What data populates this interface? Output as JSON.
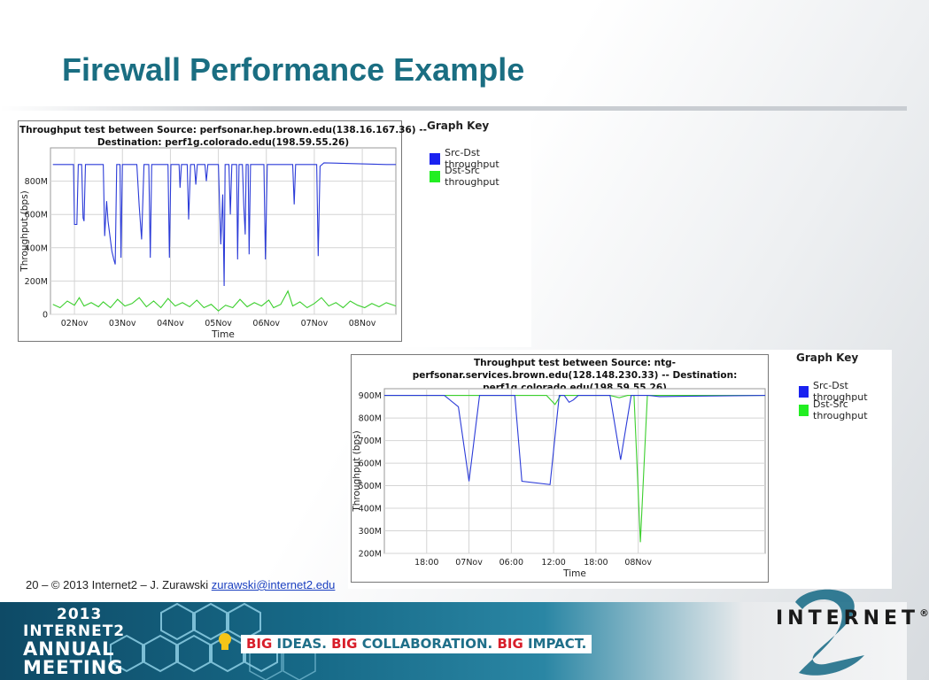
{
  "title": "Firewall Performance Example",
  "chart_data": [
    {
      "type": "line",
      "title_lines": [
        "Throughput test between Source: perfsonar.hep.brown.edu(138.16.167.36) --",
        "Destination: perf1g.colorado.edu(198.59.55.26)"
      ],
      "xlabel": "Time",
      "ylabel": "Throughput (bps)",
      "ylim": [
        0,
        1000
      ],
      "yticks": [
        {
          "v": 0,
          "label": "0"
        },
        {
          "v": 200,
          "label": "200M"
        },
        {
          "v": 400,
          "label": "400M"
        },
        {
          "v": 600,
          "label": "600M"
        },
        {
          "v": 800,
          "label": "800M"
        }
      ],
      "xlim": [
        0.5,
        7.7
      ],
      "xticks": [
        {
          "v": 1,
          "label": "02Nov"
        },
        {
          "v": 2,
          "label": "03Nov"
        },
        {
          "v": 3,
          "label": "04Nov"
        },
        {
          "v": 4,
          "label": "05Nov"
        },
        {
          "v": 5,
          "label": "06Nov"
        },
        {
          "v": 6,
          "label": "07Nov"
        },
        {
          "v": 7,
          "label": "08Nov"
        }
      ],
      "grid": true,
      "legend": {
        "title": "Graph Key",
        "position": "right"
      },
      "series": [
        {
          "name": "Src-Dst throughput",
          "color": "#2b3bd8",
          "points": [
            [
              0.55,
              900
            ],
            [
              0.95,
              900
            ],
            [
              0.98,
              900
            ],
            [
              1.0,
              540
            ],
            [
              1.05,
              540
            ],
            [
              1.08,
              900
            ],
            [
              1.15,
              900
            ],
            [
              1.18,
              580
            ],
            [
              1.2,
              560
            ],
            [
              1.23,
              900
            ],
            [
              1.6,
              900
            ],
            [
              1.63,
              470
            ],
            [
              1.67,
              680
            ],
            [
              1.7,
              560
            ],
            [
              1.78,
              380
            ],
            [
              1.82,
              330
            ],
            [
              1.85,
              300
            ],
            [
              1.88,
              900
            ],
            [
              1.95,
              900
            ],
            [
              1.97,
              340
            ],
            [
              2.0,
              900
            ],
            [
              2.3,
              900
            ],
            [
              2.35,
              650
            ],
            [
              2.4,
              450
            ],
            [
              2.45,
              900
            ],
            [
              2.55,
              900
            ],
            [
              2.58,
              340
            ],
            [
              2.61,
              900
            ],
            [
              2.95,
              900
            ],
            [
              2.98,
              340
            ],
            [
              3.01,
              900
            ],
            [
              3.18,
              900
            ],
            [
              3.2,
              760
            ],
            [
              3.23,
              900
            ],
            [
              3.35,
              900
            ],
            [
              3.38,
              570
            ],
            [
              3.42,
              900
            ],
            [
              3.5,
              900
            ],
            [
              3.53,
              780
            ],
            [
              3.56,
              900
            ],
            [
              3.68,
              900
            ],
            [
              3.72,
              900
            ],
            [
              3.75,
              800
            ],
            [
              3.78,
              900
            ],
            [
              4.0,
              900
            ],
            [
              4.05,
              420
            ],
            [
              4.09,
              720
            ],
            [
              4.12,
              170
            ],
            [
              4.14,
              900
            ],
            [
              4.22,
              900
            ],
            [
              4.25,
              600
            ],
            [
              4.28,
              900
            ],
            [
              4.38,
              900
            ],
            [
              4.4,
              330
            ],
            [
              4.43,
              900
            ],
            [
              4.5,
              900
            ],
            [
              4.53,
              650
            ],
            [
              4.56,
              480
            ],
            [
              4.58,
              900
            ],
            [
              4.62,
              900
            ],
            [
              4.64,
              360
            ],
            [
              4.67,
              900
            ],
            [
              4.95,
              900
            ],
            [
              4.98,
              330
            ],
            [
              5.02,
              900
            ],
            [
              5.55,
              900
            ],
            [
              5.58,
              660
            ],
            [
              5.61,
              900
            ],
            [
              6.05,
              900
            ],
            [
              6.08,
              350
            ],
            [
              6.12,
              890
            ],
            [
              6.2,
              910
            ],
            [
              7.5,
              900
            ],
            [
              7.7,
              900
            ]
          ]
        },
        {
          "name": "Dst-Src throughput",
          "color": "#3ccf2e",
          "points": [
            [
              0.55,
              60
            ],
            [
              0.7,
              40
            ],
            [
              0.85,
              80
            ],
            [
              1.0,
              55
            ],
            [
              1.1,
              100
            ],
            [
              1.2,
              50
            ],
            [
              1.35,
              70
            ],
            [
              1.5,
              45
            ],
            [
              1.6,
              75
            ],
            [
              1.75,
              40
            ],
            [
              1.9,
              90
            ],
            [
              2.05,
              50
            ],
            [
              2.2,
              65
            ],
            [
              2.35,
              100
            ],
            [
              2.5,
              45
            ],
            [
              2.65,
              80
            ],
            [
              2.8,
              40
            ],
            [
              2.95,
              95
            ],
            [
              3.1,
              50
            ],
            [
              3.25,
              70
            ],
            [
              3.4,
              45
            ],
            [
              3.55,
              85
            ],
            [
              3.7,
              40
            ],
            [
              3.85,
              60
            ],
            [
              4.0,
              20
            ],
            [
              4.15,
              55
            ],
            [
              4.3,
              40
            ],
            [
              4.45,
              90
            ],
            [
              4.6,
              45
            ],
            [
              4.75,
              70
            ],
            [
              4.9,
              50
            ],
            [
              5.05,
              85
            ],
            [
              5.15,
              40
            ],
            [
              5.3,
              60
            ],
            [
              5.45,
              140
            ],
            [
              5.55,
              50
            ],
            [
              5.7,
              75
            ],
            [
              5.85,
              40
            ],
            [
              6.0,
              65
            ],
            [
              6.15,
              100
            ],
            [
              6.3,
              50
            ],
            [
              6.45,
              70
            ],
            [
              6.6,
              40
            ],
            [
              6.75,
              80
            ],
            [
              6.9,
              55
            ],
            [
              7.05,
              40
            ],
            [
              7.2,
              65
            ],
            [
              7.35,
              45
            ],
            [
              7.5,
              70
            ],
            [
              7.7,
              50
            ]
          ]
        }
      ]
    },
    {
      "type": "line",
      "title_lines": [
        "Throughput test between Source: ntg-",
        "perfsonar.services.brown.edu(128.148.230.33) -- Destination:",
        "perf1g.colorado.edu(198.59.55.26)"
      ],
      "xlabel": "Time",
      "ylabel": "Throughput (bps)",
      "ylim": [
        200,
        930
      ],
      "yticks": [
        {
          "v": 200,
          "label": "200M"
        },
        {
          "v": 300,
          "label": "300M"
        },
        {
          "v": 400,
          "label": "400M"
        },
        {
          "v": 500,
          "label": "500M"
        },
        {
          "v": 600,
          "label": "600M"
        },
        {
          "v": 700,
          "label": "700M"
        },
        {
          "v": 800,
          "label": "800M"
        },
        {
          "v": 900,
          "label": "900M"
        }
      ],
      "xlim": [
        -6,
        48
      ],
      "xticks": [
        {
          "v": 0,
          "label": "18:00"
        },
        {
          "v": 6,
          "label": "07Nov"
        },
        {
          "v": 12,
          "label": "06:00"
        },
        {
          "v": 18,
          "label": "12:00"
        },
        {
          "v": 24,
          "label": "18:00"
        },
        {
          "v": 30,
          "label": "08Nov"
        }
      ],
      "grid": true,
      "legend": {
        "title": "Graph Key",
        "position": "right"
      },
      "series": [
        {
          "name": "Src-Dst throughput",
          "color": "#2b3bd8",
          "points": [
            [
              -6,
              900
            ],
            [
              2.5,
              900
            ],
            [
              4.5,
              850
            ],
            [
              6,
              520
            ],
            [
              7.5,
              900
            ],
            [
              12.5,
              900
            ],
            [
              13.5,
              520
            ],
            [
              17.5,
              505
            ],
            [
              18.8,
              900
            ],
            [
              19.5,
              900
            ],
            [
              20.2,
              870
            ],
            [
              20.8,
              880
            ],
            [
              21.5,
              900
            ],
            [
              26,
              900
            ],
            [
              27.5,
              615
            ],
            [
              29,
              900
            ],
            [
              31.5,
              900
            ],
            [
              33,
              895
            ],
            [
              48,
              900
            ]
          ]
        },
        {
          "name": "Dst-Src throughput",
          "color": "#3ccf2e",
          "points": [
            [
              -6,
              900
            ],
            [
              17,
              900
            ],
            [
              18.2,
              860
            ],
            [
              19,
              900
            ],
            [
              26,
              900
            ],
            [
              27.3,
              890
            ],
            [
              28.5,
              900
            ],
            [
              29.4,
              900
            ],
            [
              30.3,
              250
            ],
            [
              31.3,
              900
            ],
            [
              48,
              900
            ]
          ]
        }
      ]
    }
  ],
  "footer": {
    "text": "20 – © 2013 Internet2 – J. Zurawski ",
    "email": "zurawski@internet2.edu"
  },
  "banner": {
    "year": "2013",
    "line2": "INTERNET2",
    "line3": "ANNUAL",
    "line4": "MEETING",
    "tagline": [
      {
        "text": "BIG",
        "style": "big"
      },
      {
        "text": " IDEAS.  ",
        "style": "rest"
      },
      {
        "text": "BIG",
        "style": "big"
      },
      {
        "text": " COLLABORATION.  ",
        "style": "rest"
      },
      {
        "text": "BIG",
        "style": "big"
      },
      {
        "text": " IMPACT.",
        "style": "rest"
      }
    ],
    "logo": "INTERNET",
    "logo_mark": "®",
    "colors": {
      "teal": "#1f6f89",
      "red": "#d81e2a",
      "title": "#1a6e82"
    }
  }
}
